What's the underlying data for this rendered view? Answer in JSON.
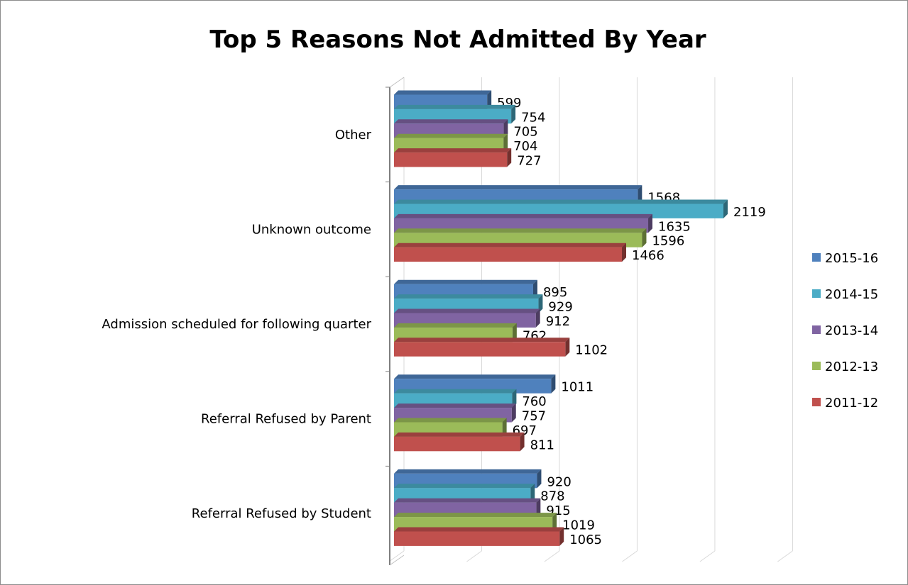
{
  "chart_data": {
    "type": "bar",
    "orientation": "horizontal",
    "three_d": true,
    "title": "Top 5 Reasons Not Admitted By Year",
    "xlim": [
      0,
      2500
    ],
    "grid": true,
    "legend_position": "right",
    "categories": [
      "Other",
      "Unknown outcome",
      "Admission scheduled for following quarter",
      "Referral Refused by Parent",
      "Referral Refused by Student"
    ],
    "series": [
      {
        "name": "2015-16",
        "color": "#4f81bd",
        "values": [
          599,
          1568,
          895,
          1011,
          920
        ]
      },
      {
        "name": "2014-15",
        "color": "#4bacc6",
        "values": [
          754,
          2119,
          929,
          760,
          878
        ]
      },
      {
        "name": "2013-14",
        "color": "#8064a2",
        "values": [
          705,
          1635,
          912,
          757,
          915
        ]
      },
      {
        "name": "2012-13",
        "color": "#9bbb59",
        "values": [
          704,
          1596,
          762,
          697,
          1019
        ]
      },
      {
        "name": "2011-12",
        "color": "#c0504d",
        "values": [
          727,
          1466,
          1102,
          811,
          1065
        ]
      }
    ]
  }
}
